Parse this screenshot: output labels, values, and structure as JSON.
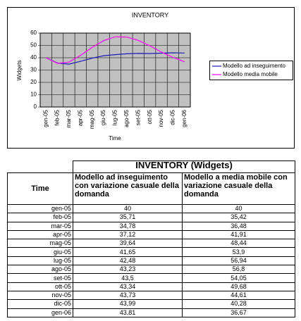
{
  "chart_data": {
    "type": "line",
    "title": "INVENTORY",
    "xlabel": "Time",
    "ylabel": "Widgets",
    "categories": [
      "gen-05",
      "feb-05",
      "mar-05",
      "apr-05",
      "mag-05",
      "giu-05",
      "lug-05",
      "ago-05",
      "set-05",
      "ott-05",
      "nov-05",
      "dic-05",
      "gen-06"
    ],
    "series": [
      {
        "name": "Modello ad inseguimento",
        "color": "#1c1cb4",
        "values": [
          40,
          35.71,
          34.78,
          37.12,
          39.64,
          41.65,
          42.48,
          43.23,
          43.5,
          43.34,
          43.73,
          43.99,
          43.81
        ]
      },
      {
        "name": "Modello media mobile",
        "color": "#ff00ff",
        "values": [
          40,
          35.42,
          36.48,
          41.91,
          48.44,
          53.9,
          56.94,
          56.8,
          54.05,
          49.68,
          44.61,
          40.28,
          36.67
        ]
      }
    ],
    "ylim": [
      0,
      60
    ],
    "yticks": [
      0,
      10,
      20,
      30,
      40,
      50,
      60
    ],
    "grid": true,
    "legend": "right",
    "plot_background": "#c0c0c0"
  },
  "table": {
    "title": "INVENTORY (Widgets)",
    "columns": [
      "Time",
      "Modello ad inseguimento con variazione casuale della domanda",
      "Modello a media mobile con variazione casuale della domanda"
    ],
    "rows": [
      [
        "gen-05",
        "40",
        "40"
      ],
      [
        "feb-05",
        "35,71",
        "35,42"
      ],
      [
        "mar-05",
        "34,78",
        "36,48"
      ],
      [
        "apr-05",
        "37,12",
        "41,91"
      ],
      [
        "mag-05",
        "39,64",
        "48,44"
      ],
      [
        "giu-05",
        "41,65",
        "53,9"
      ],
      [
        "lug-05",
        "42,48",
        "56,94"
      ],
      [
        "ago-05",
        "43,23",
        "56,8"
      ],
      [
        "set-05",
        "43,5",
        "54,05"
      ],
      [
        "ott-05",
        "43,34",
        "49,68"
      ],
      [
        "nov-05",
        "43,73",
        "44,61"
      ],
      [
        "dic-05",
        "43,99",
        "40,28"
      ],
      [
        "gen-06",
        "43,81",
        "36,67"
      ]
    ]
  }
}
